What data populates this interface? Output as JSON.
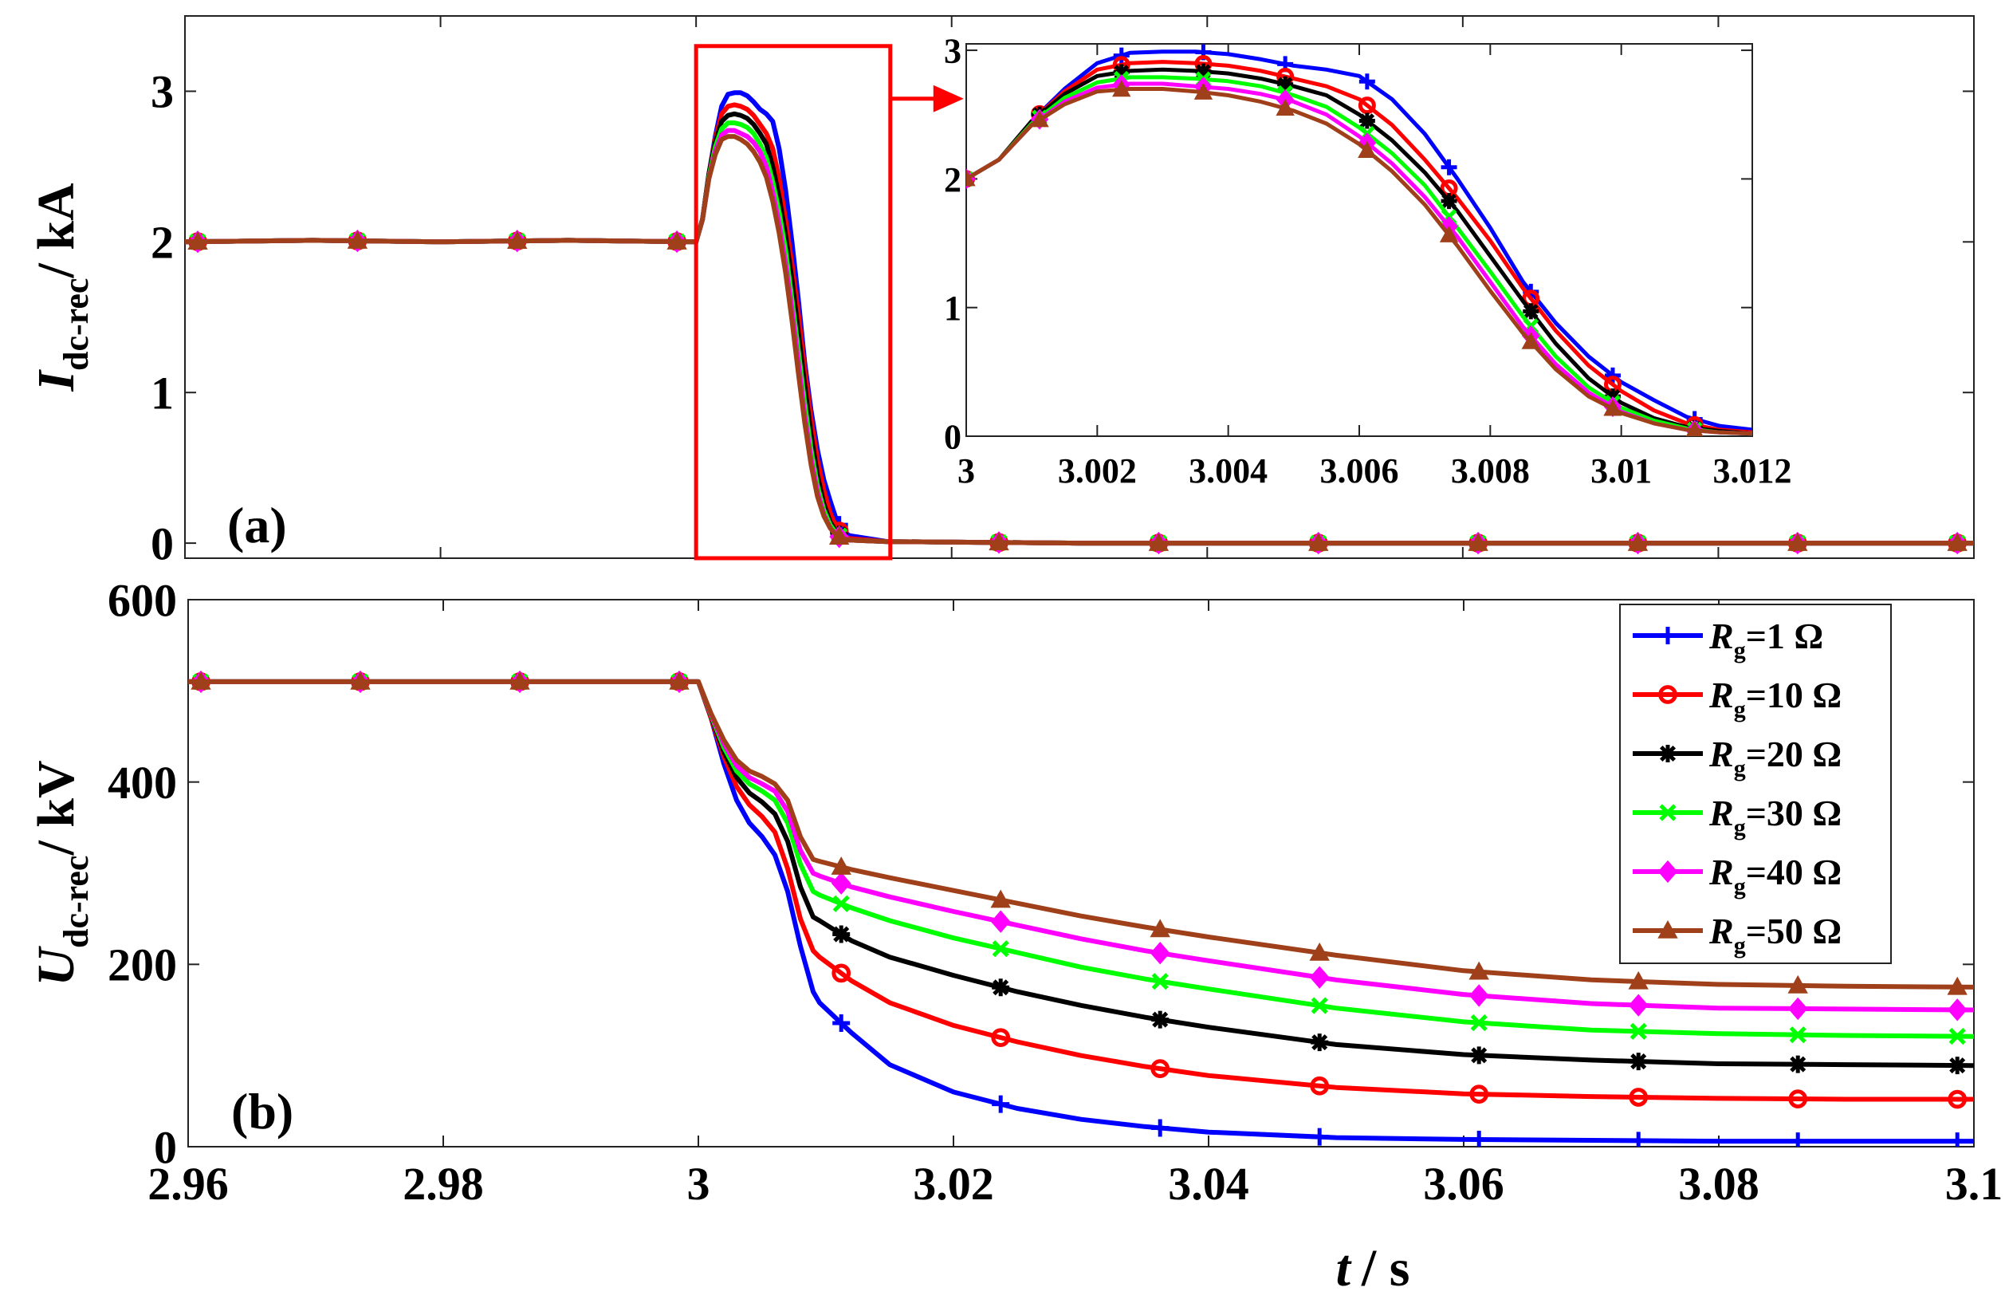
{
  "chart_data": [
    {
      "id": "panel-a",
      "type": "line",
      "panel_label": "(a)",
      "ylabel_main": "I",
      "ylabel_sub": "dc-rec",
      "ylabel_unit": "/ kA",
      "xlim": [
        2.96,
        3.1
      ],
      "ylim": [
        -0.1,
        3.5
      ],
      "xticks": [
        2.96,
        2.98,
        3.0,
        3.02,
        3.04,
        3.06,
        3.08,
        3.1
      ],
      "yticks": [
        0,
        1,
        2,
        3
      ],
      "ytick_labels": [
        "0",
        "1",
        "2",
        "3"
      ],
      "grid": false,
      "series": [
        {
          "name": "Rg=1 Ω",
          "color": "#0000ff",
          "marker": "plus",
          "x": [
            2.96,
            2.97,
            2.98,
            2.99,
            3.0,
            3.0005,
            3.001,
            3.0015,
            3.002,
            3.0025,
            3.003,
            3.0035,
            3.004,
            3.0045,
            3.005,
            3.0055,
            3.006,
            3.0065,
            3.007,
            3.0075,
            3.008,
            3.0085,
            3.009,
            3.0095,
            3.01,
            3.0105,
            3.011,
            3.0115,
            3.012,
            3.015,
            3.03,
            3.05,
            3.07,
            3.09,
            3.1
          ],
          "y": [
            2.0,
            2.01,
            2.0,
            2.01,
            2.0,
            2.15,
            2.45,
            2.7,
            2.9,
            2.98,
            2.99,
            2.99,
            2.97,
            2.93,
            2.88,
            2.85,
            2.8,
            2.62,
            2.35,
            2.0,
            1.62,
            1.2,
            0.88,
            0.62,
            0.42,
            0.28,
            0.15,
            0.08,
            0.05,
            0.01,
            0.0,
            0.0,
            0.0,
            0.0,
            0.0
          ]
        },
        {
          "name": "Rg=10 Ω",
          "color": "#ff0000",
          "marker": "circle",
          "x": [
            2.96,
            2.97,
            2.98,
            2.99,
            3.0,
            3.0005,
            3.001,
            3.0015,
            3.002,
            3.0025,
            3.003,
            3.0035,
            3.004,
            3.0045,
            3.005,
            3.0055,
            3.006,
            3.0065,
            3.007,
            3.0075,
            3.008,
            3.0085,
            3.009,
            3.0095,
            3.01,
            3.0105,
            3.011,
            3.0115,
            3.012,
            3.015,
            3.03,
            3.05,
            3.07,
            3.09,
            3.1
          ],
          "y": [
            2.0,
            2.01,
            2.0,
            2.01,
            2.0,
            2.15,
            2.45,
            2.68,
            2.85,
            2.9,
            2.91,
            2.9,
            2.88,
            2.84,
            2.78,
            2.72,
            2.62,
            2.42,
            2.15,
            1.85,
            1.52,
            1.15,
            0.82,
            0.55,
            0.35,
            0.2,
            0.1,
            0.05,
            0.03,
            0.01,
            0.0,
            0.0,
            0.0,
            0.0,
            0.0
          ]
        },
        {
          "name": "Rg=20 Ω",
          "color": "#000000",
          "marker": "asterisk",
          "x": [
            2.96,
            2.97,
            2.98,
            2.99,
            3.0,
            3.0005,
            3.001,
            3.0015,
            3.002,
            3.0025,
            3.003,
            3.0035,
            3.004,
            3.0045,
            3.005,
            3.0055,
            3.006,
            3.0065,
            3.007,
            3.0075,
            3.008,
            3.0085,
            3.009,
            3.0095,
            3.01,
            3.0105,
            3.011,
            3.0115,
            3.012,
            3.015,
            3.03,
            3.05,
            3.07,
            3.09,
            3.1
          ],
          "y": [
            2.0,
            2.01,
            2.0,
            2.01,
            2.0,
            2.15,
            2.45,
            2.66,
            2.8,
            2.84,
            2.85,
            2.84,
            2.82,
            2.78,
            2.72,
            2.65,
            2.5,
            2.3,
            2.05,
            1.75,
            1.4,
            1.05,
            0.72,
            0.45,
            0.26,
            0.14,
            0.07,
            0.04,
            0.02,
            0.01,
            0.0,
            0.0,
            0.0,
            0.0,
            0.0
          ]
        },
        {
          "name": "Rg=30 Ω",
          "color": "#00ff00",
          "marker": "cross",
          "x": [
            2.96,
            2.97,
            2.98,
            2.99,
            3.0,
            3.0005,
            3.001,
            3.0015,
            3.002,
            3.0025,
            3.003,
            3.0035,
            3.004,
            3.0045,
            3.005,
            3.0055,
            3.006,
            3.0065,
            3.007,
            3.0075,
            3.008,
            3.0085,
            3.009,
            3.0095,
            3.01,
            3.0105,
            3.011,
            3.0115,
            3.012,
            3.015,
            3.03,
            3.05,
            3.07,
            3.09,
            3.1
          ],
          "y": [
            2.0,
            2.01,
            2.0,
            2.01,
            2.0,
            2.15,
            2.43,
            2.63,
            2.75,
            2.79,
            2.79,
            2.78,
            2.76,
            2.72,
            2.65,
            2.56,
            2.4,
            2.2,
            1.95,
            1.62,
            1.28,
            0.93,
            0.62,
            0.38,
            0.22,
            0.12,
            0.06,
            0.03,
            0.02,
            0.01,
            0.0,
            0.0,
            0.0,
            0.0,
            0.0
          ]
        },
        {
          "name": "Rg=40 Ω",
          "color": "#ff00ff",
          "marker": "diamond",
          "x": [
            2.96,
            2.97,
            2.98,
            2.99,
            3.0,
            3.0005,
            3.001,
            3.0015,
            3.002,
            3.0025,
            3.003,
            3.0035,
            3.004,
            3.0045,
            3.005,
            3.0055,
            3.006,
            3.0065,
            3.007,
            3.0075,
            3.008,
            3.0085,
            3.009,
            3.0095,
            3.01,
            3.0105,
            3.011,
            3.0115,
            3.012,
            3.015,
            3.03,
            3.05,
            3.07,
            3.09,
            3.1
          ],
          "y": [
            2.0,
            2.01,
            2.0,
            2.01,
            2.0,
            2.15,
            2.42,
            2.6,
            2.71,
            2.74,
            2.74,
            2.72,
            2.7,
            2.66,
            2.6,
            2.5,
            2.33,
            2.12,
            1.86,
            1.55,
            1.2,
            0.85,
            0.56,
            0.34,
            0.19,
            0.1,
            0.05,
            0.03,
            0.02,
            0.01,
            0.0,
            0.0,
            0.0,
            0.0,
            0.0
          ]
        },
        {
          "name": "Rg=50 Ω",
          "color": "#a0401a",
          "marker": "triangle",
          "x": [
            2.96,
            2.97,
            2.98,
            2.99,
            3.0,
            3.0005,
            3.001,
            3.0015,
            3.002,
            3.0025,
            3.003,
            3.0035,
            3.004,
            3.0045,
            3.005,
            3.0055,
            3.006,
            3.0065,
            3.007,
            3.0075,
            3.008,
            3.0085,
            3.009,
            3.0095,
            3.01,
            3.0105,
            3.011,
            3.0115,
            3.012,
            3.015,
            3.03,
            3.05,
            3.07,
            3.09,
            3.1
          ],
          "y": [
            2.0,
            2.01,
            2.0,
            2.01,
            2.0,
            2.15,
            2.42,
            2.58,
            2.68,
            2.7,
            2.7,
            2.68,
            2.65,
            2.6,
            2.53,
            2.43,
            2.27,
            2.06,
            1.8,
            1.48,
            1.13,
            0.8,
            0.52,
            0.31,
            0.18,
            0.1,
            0.05,
            0.03,
            0.02,
            0.01,
            0.0,
            0.0,
            0.0,
            0.0,
            0.0
          ]
        }
      ]
    },
    {
      "id": "panel-a-inset",
      "type": "line",
      "xlim": [
        3.0,
        3.012
      ],
      "ylim": [
        0,
        3.05
      ],
      "xticks": [
        3.0,
        3.002,
        3.004,
        3.006,
        3.008,
        3.01,
        3.012
      ],
      "xtick_labels": [
        "3",
        "3.002",
        "3.004",
        "3.006",
        "3.008",
        "3.01",
        "3.012"
      ],
      "yticks": [
        0,
        1,
        2,
        3
      ],
      "ytick_labels": [
        "0",
        "1",
        "2",
        "3"
      ],
      "grid": false,
      "series_ref": "panel-a"
    },
    {
      "id": "panel-b",
      "type": "line",
      "panel_label": "(b)",
      "ylabel_main": "U",
      "ylabel_sub": "dc-rec",
      "ylabel_unit": "/ kV",
      "xlabel_main": "t",
      "xlabel_unit": "/ s",
      "xlim": [
        2.96,
        3.1
      ],
      "ylim": [
        0,
        600
      ],
      "xticks": [
        2.96,
        2.98,
        3.0,
        3.02,
        3.04,
        3.06,
        3.08,
        3.1
      ],
      "xtick_labels": [
        "2.96",
        "2.98",
        "3",
        "3.02",
        "3.04",
        "3.06",
        "3.08",
        "3.1"
      ],
      "yticks": [
        0,
        200,
        400,
        600
      ],
      "ytick_labels": [
        "0",
        "200",
        "400",
        "600"
      ],
      "grid": false,
      "legend_position": "top-right",
      "series": [
        {
          "name": "Rg=1 Ω",
          "color": "#0000ff",
          "marker": "plus",
          "x": [
            2.96,
            2.97,
            2.98,
            2.99,
            3.0,
            3.001,
            3.002,
            3.003,
            3.004,
            3.005,
            3.006,
            3.007,
            3.008,
            3.009,
            3.0095,
            3.012,
            3.015,
            3.02,
            3.025,
            3.03,
            3.035,
            3.04,
            3.05,
            3.06,
            3.07,
            3.08,
            3.09,
            3.1
          ],
          "y": [
            510,
            510,
            510,
            510,
            510,
            470,
            420,
            380,
            355,
            340,
            320,
            280,
            220,
            170,
            158,
            125,
            90,
            60,
            42,
            30,
            22,
            16,
            10,
            8,
            7,
            6,
            6,
            6
          ]
        },
        {
          "name": "Rg=10 Ω",
          "color": "#ff0000",
          "marker": "circle",
          "x": [
            2.96,
            2.97,
            2.98,
            2.99,
            3.0,
            3.001,
            3.002,
            3.003,
            3.004,
            3.005,
            3.006,
            3.007,
            3.008,
            3.009,
            3.0095,
            3.012,
            3.015,
            3.02,
            3.025,
            3.03,
            3.035,
            3.04,
            3.05,
            3.06,
            3.07,
            3.08,
            3.09,
            3.1
          ],
          "y": [
            510,
            510,
            510,
            510,
            510,
            470,
            428,
            395,
            375,
            362,
            345,
            305,
            250,
            215,
            208,
            182,
            158,
            133,
            115,
            100,
            88,
            78,
            65,
            58,
            55,
            53,
            52,
            52
          ]
        },
        {
          "name": "Rg=20 Ω",
          "color": "#000000",
          "marker": "asterisk",
          "x": [
            2.96,
            2.97,
            2.98,
            2.99,
            3.0,
            3.001,
            3.002,
            3.003,
            3.004,
            3.005,
            3.006,
            3.007,
            3.008,
            3.009,
            3.0095,
            3.012,
            3.015,
            3.02,
            3.025,
            3.03,
            3.035,
            3.04,
            3.05,
            3.06,
            3.07,
            3.08,
            3.09,
            3.1
          ],
          "y": [
            510,
            510,
            510,
            510,
            510,
            472,
            433,
            405,
            388,
            378,
            365,
            335,
            285,
            252,
            248,
            226,
            208,
            188,
            170,
            155,
            142,
            131,
            112,
            101,
            95,
            91,
            90,
            89
          ]
        },
        {
          "name": "Rg=30 Ω",
          "color": "#00ff00",
          "marker": "cross",
          "x": [
            2.96,
            2.97,
            2.98,
            2.99,
            3.0,
            3.001,
            3.002,
            3.003,
            3.004,
            3.005,
            3.006,
            3.007,
            3.008,
            3.009,
            3.0095,
            3.012,
            3.015,
            3.02,
            3.025,
            3.03,
            3.035,
            3.04,
            3.05,
            3.06,
            3.07,
            3.08,
            3.09,
            3.1
          ],
          "y": [
            510,
            510,
            510,
            510,
            510,
            473,
            438,
            412,
            398,
            390,
            380,
            355,
            310,
            280,
            276,
            262,
            248,
            229,
            213,
            197,
            184,
            173,
            152,
            137,
            128,
            124,
            122,
            121
          ]
        },
        {
          "name": "Rg=40 Ω",
          "color": "#ff00ff",
          "marker": "diamond",
          "x": [
            2.96,
            2.97,
            2.98,
            2.99,
            3.0,
            3.001,
            3.002,
            3.003,
            3.004,
            3.005,
            3.006,
            3.007,
            3.008,
            3.009,
            3.0095,
            3.012,
            3.015,
            3.02,
            3.025,
            3.03,
            3.035,
            3.04,
            3.05,
            3.06,
            3.07,
            3.08,
            3.09,
            3.1
          ],
          "y": [
            510,
            510,
            510,
            510,
            510,
            474,
            442,
            418,
            405,
            398,
            390,
            368,
            325,
            300,
            297,
            285,
            274,
            258,
            243,
            228,
            215,
            204,
            183,
            167,
            157,
            152,
            151,
            150
          ]
        },
        {
          "name": "Rg=50 Ω",
          "color": "#a0401a",
          "marker": "triangle",
          "x": [
            2.96,
            2.97,
            2.98,
            2.99,
            3.0,
            3.001,
            3.002,
            3.003,
            3.004,
            3.005,
            3.006,
            3.007,
            3.008,
            3.009,
            3.0095,
            3.012,
            3.015,
            3.02,
            3.025,
            3.03,
            3.035,
            3.04,
            3.05,
            3.06,
            3.07,
            3.08,
            3.09,
            3.1
          ],
          "y": [
            510,
            510,
            510,
            510,
            510,
            475,
            446,
            424,
            412,
            406,
            398,
            380,
            340,
            315,
            313,
            304,
            295,
            281,
            267,
            253,
            241,
            230,
            210,
            193,
            183,
            178,
            176,
            175
          ]
        }
      ]
    }
  ],
  "legend": {
    "items": [
      {
        "var": "R",
        "sub": "g",
        "value": "=1 Ω"
      },
      {
        "var": "R",
        "sub": "g",
        "value": "=10 Ω"
      },
      {
        "var": "R",
        "sub": "g",
        "value": "=20 Ω"
      },
      {
        "var": "R",
        "sub": "g",
        "value": "=30 Ω"
      },
      {
        "var": "R",
        "sub": "g",
        "value": "=40 Ω"
      },
      {
        "var": "R",
        "sub": "g",
        "value": "=50 Ω"
      }
    ]
  },
  "zoom_box_color": "#ff0000"
}
